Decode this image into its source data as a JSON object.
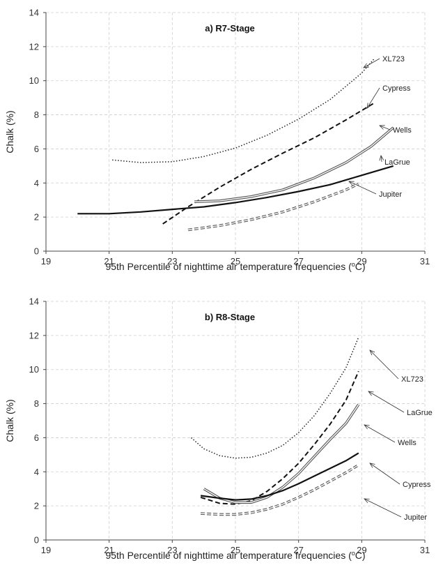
{
  "chart_data": [
    {
      "type": "line",
      "title": "a) R7-Stage",
      "xlabel": "95th Percentile of nighttime air temperature frequencies (",
      "xlabel_unit_sup": "o",
      "xlabel_unit_tail": "C)",
      "ylabel": "Chalk (%)",
      "xlim": [
        19,
        31
      ],
      "ylim": [
        0,
        14
      ],
      "xticks": [
        "19",
        "21",
        "23",
        "25",
        "27",
        "29",
        "31"
      ],
      "yticks": [
        "0",
        "2",
        "4",
        "6",
        "8",
        "10",
        "12",
        "14"
      ],
      "grid": true,
      "series": [
        {
          "name": "XL723",
          "style": "dotted",
          "color": "#222222",
          "points": [
            [
              21.1,
              5.35
            ],
            [
              22.0,
              5.2
            ],
            [
              23.0,
              5.25
            ],
            [
              24.0,
              5.55
            ],
            [
              25.0,
              6.05
            ],
            [
              26.0,
              6.8
            ],
            [
              27.0,
              7.75
            ],
            [
              28.0,
              8.9
            ],
            [
              29.0,
              10.45
            ],
            [
              29.4,
              11.3
            ]
          ]
        },
        {
          "name": "Cypress",
          "style": "dashed",
          "color": "#111111",
          "points": [
            [
              22.7,
              1.6
            ],
            [
              23.5,
              2.6
            ],
            [
              24.5,
              3.75
            ],
            [
              25.5,
              4.8
            ],
            [
              26.5,
              5.75
            ],
            [
              27.5,
              6.65
            ],
            [
              28.5,
              7.7
            ],
            [
              29.4,
              8.7
            ]
          ]
        },
        {
          "name": "Wells",
          "style": "double",
          "color": "#555555",
          "points": [
            [
              23.7,
              2.9
            ],
            [
              24.5,
              2.95
            ],
            [
              25.5,
              3.2
            ],
            [
              26.5,
              3.6
            ],
            [
              27.5,
              4.3
            ],
            [
              28.5,
              5.2
            ],
            [
              29.3,
              6.15
            ],
            [
              30.0,
              7.25
            ]
          ]
        },
        {
          "name": "LaGrue",
          "style": "solid",
          "color": "#111111",
          "points": [
            [
              20.0,
              2.2
            ],
            [
              21.0,
              2.2
            ],
            [
              22.0,
              2.3
            ],
            [
              23.0,
              2.45
            ],
            [
              24.0,
              2.6
            ],
            [
              25.0,
              2.85
            ],
            [
              26.0,
              3.15
            ],
            [
              27.0,
              3.5
            ],
            [
              28.0,
              3.9
            ],
            [
              29.0,
              4.45
            ],
            [
              30.0,
              5.0
            ]
          ]
        },
        {
          "name": "Jupiter",
          "style": "double-dashed",
          "color": "#555555",
          "points": [
            [
              23.5,
              1.25
            ],
            [
              24.5,
              1.5
            ],
            [
              25.5,
              1.85
            ],
            [
              26.5,
              2.3
            ],
            [
              27.5,
              2.9
            ],
            [
              28.5,
              3.6
            ],
            [
              28.9,
              3.95
            ]
          ]
        }
      ]
    },
    {
      "type": "line",
      "title": "b) R8-Stage",
      "xlabel": "95th Percentile of nighttime air temperature frequencies (",
      "xlabel_unit_sup": "o",
      "xlabel_unit_tail": "C)",
      "ylabel": "Chalk (%)",
      "xlim": [
        19,
        31
      ],
      "ylim": [
        0,
        14
      ],
      "xticks": [
        "19",
        "21",
        "23",
        "25",
        "27",
        "29",
        "31"
      ],
      "yticks": [
        "0",
        "2",
        "4",
        "6",
        "8",
        "10",
        "12",
        "14"
      ],
      "grid": true,
      "series": [
        {
          "name": "XL723",
          "style": "dotted",
          "color": "#222222",
          "points": [
            [
              23.6,
              6.0
            ],
            [
              24.0,
              5.35
            ],
            [
              24.5,
              4.95
            ],
            [
              25.0,
              4.8
            ],
            [
              25.5,
              4.85
            ],
            [
              26.0,
              5.1
            ],
            [
              26.5,
              5.55
            ],
            [
              27.0,
              6.3
            ],
            [
              27.5,
              7.3
            ],
            [
              28.0,
              8.6
            ],
            [
              28.5,
              10.1
            ],
            [
              28.9,
              11.9
            ]
          ]
        },
        {
          "name": "LaGrue",
          "style": "dashed",
          "color": "#111111",
          "points": [
            [
              23.9,
              2.5
            ],
            [
              24.5,
              2.15
            ],
            [
              25.0,
              2.1
            ],
            [
              25.5,
              2.3
            ],
            [
              26.0,
              2.85
            ],
            [
              26.5,
              3.6
            ],
            [
              27.0,
              4.5
            ],
            [
              27.5,
              5.6
            ],
            [
              28.0,
              6.8
            ],
            [
              28.5,
              8.2
            ],
            [
              28.9,
              9.9
            ]
          ]
        },
        {
          "name": "Wells",
          "style": "double",
          "color": "#555555",
          "points": [
            [
              24.0,
              3.0
            ],
            [
              24.5,
              2.45
            ],
            [
              25.0,
              2.2
            ],
            [
              25.5,
              2.2
            ],
            [
              26.0,
              2.5
            ],
            [
              26.5,
              3.1
            ],
            [
              27.0,
              3.9
            ],
            [
              27.5,
              4.9
            ],
            [
              28.0,
              5.9
            ],
            [
              28.5,
              6.85
            ],
            [
              28.9,
              7.95
            ]
          ]
        },
        {
          "name": "Cypress",
          "style": "solid",
          "color": "#111111",
          "points": [
            [
              23.9,
              2.6
            ],
            [
              24.5,
              2.45
            ],
            [
              25.0,
              2.35
            ],
            [
              25.5,
              2.4
            ],
            [
              26.0,
              2.6
            ],
            [
              26.5,
              2.9
            ],
            [
              27.0,
              3.3
            ],
            [
              27.5,
              3.75
            ],
            [
              28.0,
              4.2
            ],
            [
              28.5,
              4.65
            ],
            [
              28.9,
              5.1
            ]
          ]
        },
        {
          "name": "Jupiter",
          "style": "double-dashed",
          "color": "#555555",
          "points": [
            [
              23.9,
              1.55
            ],
            [
              24.5,
              1.5
            ],
            [
              25.0,
              1.5
            ],
            [
              25.5,
              1.6
            ],
            [
              26.0,
              1.8
            ],
            [
              26.5,
              2.1
            ],
            [
              27.0,
              2.5
            ],
            [
              27.5,
              2.95
            ],
            [
              28.0,
              3.45
            ],
            [
              28.5,
              3.95
            ],
            [
              28.9,
              4.4
            ]
          ]
        }
      ]
    }
  ]
}
